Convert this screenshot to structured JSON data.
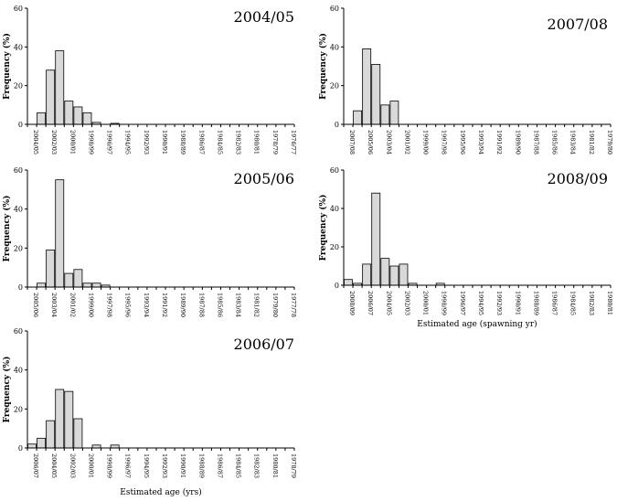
{
  "y_axis_label": "Frequency (%)",
  "chart_data": [
    {
      "type": "bar",
      "title": "2004/05",
      "ylabel": "Frequency (%)",
      "xlabel": "",
      "ylim": [
        0,
        60
      ],
      "yticks": [
        0,
        20,
        40,
        60
      ],
      "categories": [
        "2004/05",
        "2003/04",
        "2002/03",
        "2001/02",
        "2000/01",
        "1999/00",
        "1998/99",
        "1997/98",
        "1996/97",
        "1995/96",
        "1994/95",
        "1993/94",
        "1992/93",
        "1991/92",
        "1990/91",
        "1989/90",
        "1988/89",
        "1987/88",
        "1986/87",
        "1985/86",
        "1984/85",
        "1983/84",
        "1982/83",
        "1981/82",
        "1980/81",
        "1979/80",
        "1978/79",
        "1977/78",
        "1976/77"
      ],
      "tick_labels": [
        "2004/05",
        "2002/03",
        "2000/01",
        "1998/99",
        "1996/97",
        "1994/95",
        "1992/93",
        "1990/91",
        "1988/89",
        "1986/87",
        "1984/85",
        "1982/83",
        "1980/81",
        "1978/79",
        "1976/77"
      ],
      "values": [
        0,
        6,
        28,
        38,
        12,
        9,
        6,
        1,
        0,
        0.5,
        0,
        0,
        0,
        0,
        0,
        0,
        0,
        0,
        0,
        0,
        0,
        0,
        0,
        0,
        0,
        0,
        0,
        0,
        0
      ]
    },
    {
      "type": "bar",
      "title": "2005/06",
      "ylabel": "Frequency (%)",
      "xlabel": "",
      "ylim": [
        0,
        60
      ],
      "yticks": [
        0,
        20,
        40,
        60
      ],
      "categories": [
        "2005/06",
        "2004/05",
        "2003/04",
        "2002/03",
        "2001/02",
        "2000/01",
        "1999/00",
        "1998/99",
        "1997/98",
        "1996/97",
        "1995/96",
        "1994/95",
        "1993/94",
        "1992/93",
        "1991/92",
        "1990/91",
        "1989/90",
        "1988/89",
        "1987/88",
        "1986/87",
        "1985/86",
        "1984/85",
        "1983/84",
        "1982/83",
        "1981/82",
        "1980/81",
        "1979/80",
        "1978/79",
        "1977/78"
      ],
      "tick_labels": [
        "2005/06",
        "2003/04",
        "2001/02",
        "1999/00",
        "1997/98",
        "1995/96",
        "1993/94",
        "1991/92",
        "1989/90",
        "1987/88",
        "1985/86",
        "1983/84",
        "1981/82",
        "1979/80",
        "1977/78"
      ],
      "values": [
        0,
        2,
        19,
        55,
        7,
        9,
        2,
        2,
        1,
        0,
        0,
        0,
        0,
        0,
        0,
        0,
        0,
        0,
        0,
        0,
        0,
        0,
        0,
        0,
        0,
        0,
        0,
        0,
        0
      ]
    },
    {
      "type": "bar",
      "title": "2006/07",
      "ylabel": "Frequency (%)",
      "xlabel": "Estimated age (yrs)",
      "ylim": [
        0,
        60
      ],
      "yticks": [
        0,
        20,
        40,
        60
      ],
      "categories": [
        "2006/07",
        "2005/06",
        "2004/05",
        "2003/04",
        "2002/03",
        "2001/02",
        "2000/01",
        "1999/00",
        "1998/99",
        "1997/98",
        "1996/97",
        "1995/96",
        "1994/95",
        "1993/94",
        "1992/93",
        "1991/92",
        "1990/91",
        "1989/90",
        "1988/89",
        "1987/88",
        "1986/87",
        "1985/86",
        "1984/85",
        "1983/84",
        "1982/83",
        "1981/82",
        "1980/81",
        "1979/80",
        "1978/79"
      ],
      "tick_labels": [
        "2006/07",
        "2004/05",
        "2002/03",
        "2000/01",
        "1998/99",
        "1996/97",
        "1994/95",
        "1992/93",
        "1990/91",
        "1988/89",
        "1986/87",
        "1984/85",
        "1982/83",
        "1980/81",
        "1978/79"
      ],
      "values": [
        2,
        5,
        14,
        30,
        29,
        15,
        0,
        1.5,
        0,
        1.5,
        0,
        0,
        0,
        0,
        0,
        0,
        0,
        0,
        0,
        0,
        0,
        0,
        0,
        0,
        0,
        0,
        0,
        0,
        0
      ]
    },
    {
      "type": "bar",
      "title": "2007/08",
      "ylabel": "Frequency (%)",
      "xlabel": "",
      "ylim": [
        0,
        60
      ],
      "yticks": [
        0,
        20,
        40,
        60
      ],
      "categories": [
        "2007/08",
        "2006/07",
        "2005/06",
        "2004/05",
        "2003/04",
        "2002/03",
        "2001/02",
        "2000/01",
        "1999/00",
        "1998/99",
        "1997/98",
        "1996/97",
        "1995/96",
        "1994/95",
        "1993/94",
        "1992/93",
        "1991/92",
        "1990/91",
        "1989/90",
        "1988/89",
        "1987/88",
        "1986/87",
        "1985/86",
        "1984/85",
        "1983/84",
        "1982/83",
        "1981/82",
        "1980/81",
        "1979/80"
      ],
      "tick_labels": [
        "2007/08",
        "2005/06",
        "2003/04",
        "2001/02",
        "1999/00",
        "1997/98",
        "1995/96",
        "1993/94",
        "1991/92",
        "1989/90",
        "1987/88",
        "1985/86",
        "1983/84",
        "1981/82",
        "1979/80"
      ],
      "values": [
        0,
        7,
        39,
        31,
        10,
        12,
        0,
        0,
        0,
        0,
        0,
        0,
        0,
        0,
        0,
        0,
        0,
        0,
        0,
        0,
        0,
        0,
        0,
        0,
        0,
        0,
        0,
        0,
        0
      ]
    },
    {
      "type": "bar",
      "title": "2008/09",
      "ylabel": "Frequency (%)",
      "xlabel": "Estimated age (spawning yr)",
      "ylim": [
        0,
        60
      ],
      "yticks": [
        0,
        20,
        40,
        60
      ],
      "categories": [
        "2008/09",
        "2007/08",
        "2006/07",
        "2005/06",
        "2004/05",
        "2003/04",
        "2002/03",
        "2001/02",
        "2000/01",
        "1999/00",
        "1998/99",
        "1997/98",
        "1996/97",
        "1995/96",
        "1994/95",
        "1993/94",
        "1992/93",
        "1991/92",
        "1990/91",
        "1989/90",
        "1988/89",
        "1987/88",
        "1986/87",
        "1985/86",
        "1984/85",
        "1983/84",
        "1982/83",
        "1981/82",
        "1980/81"
      ],
      "tick_labels": [
        "2008/09",
        "2006/07",
        "2004/05",
        "2002/03",
        "2000/01",
        "1998/99",
        "1996/97",
        "1994/95",
        "1992/93",
        "1990/91",
        "1988/89",
        "1986/87",
        "1984/85",
        "1982/83",
        "1980/81"
      ],
      "values": [
        3,
        1,
        11,
        48,
        14,
        10,
        11,
        1,
        0,
        0,
        1,
        0,
        0,
        0,
        0,
        0,
        0,
        0,
        0,
        0,
        0,
        0,
        0,
        0,
        0,
        0,
        0,
        0,
        0
      ]
    }
  ]
}
